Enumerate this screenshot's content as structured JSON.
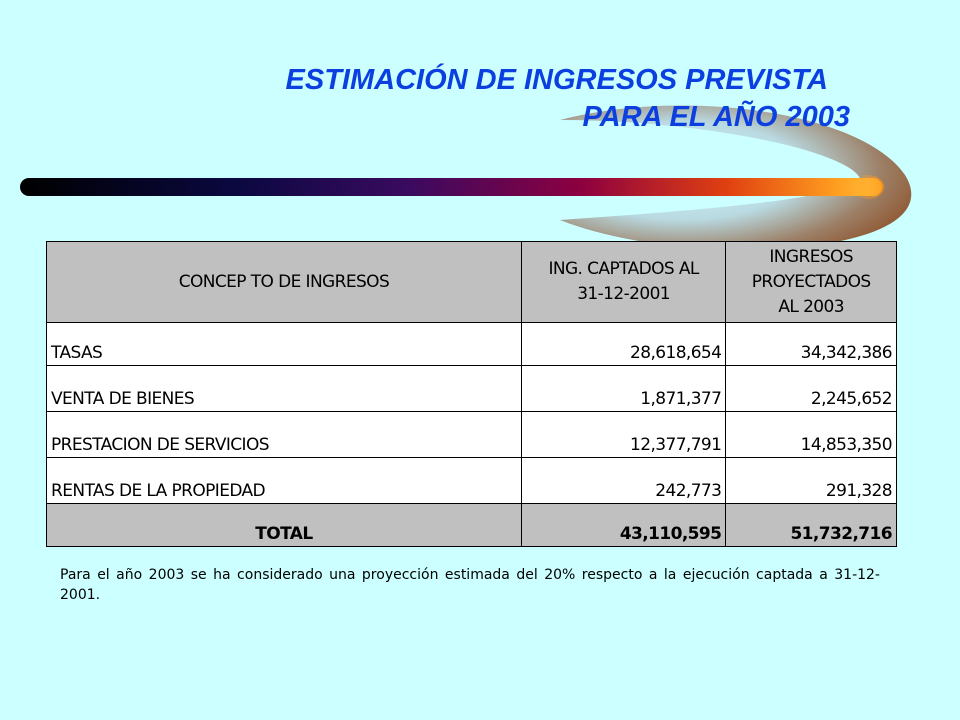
{
  "slide": {
    "title_line1": "ESTIMACIÓN DE INGRESOS PREVISTA",
    "title_line2": "PARA EL AÑO 2003",
    "colors": {
      "background": "#CCFFFF",
      "title": "#0B3FE0",
      "header_fill": "#C0C0C0"
    }
  },
  "table": {
    "headers": {
      "concept": "CONCEP TO DE INGRESOS",
      "captured_l1": "ING. CAPTADOS AL",
      "captured_l2": "31-12-2001",
      "projected_l1": "INGRESOS",
      "projected_l2": "PROYECTADOS",
      "projected_l3": "AL 2003"
    },
    "rows": [
      {
        "concept": "TASAS",
        "captured": "28,618,654",
        "projected": "34,342,386"
      },
      {
        "concept": "VENTA DE BIENES",
        "captured": "1,871,377",
        "projected": "2,245,652"
      },
      {
        "concept": "PRESTACION DE SERVICIOS",
        "captured": "12,377,791",
        "projected": "14,853,350"
      },
      {
        "concept": "RENTAS DE LA PROPIEDAD",
        "captured": "242,773",
        "projected": "291,328"
      }
    ],
    "total": {
      "label": "TOTAL",
      "captured": "43,110,595",
      "projected": "51,732,716"
    }
  },
  "note": {
    "text": "Para el año 2003 se ha considerado una proyección estimada del 20% respecto a la ejecución captada a 31-12-2001."
  }
}
